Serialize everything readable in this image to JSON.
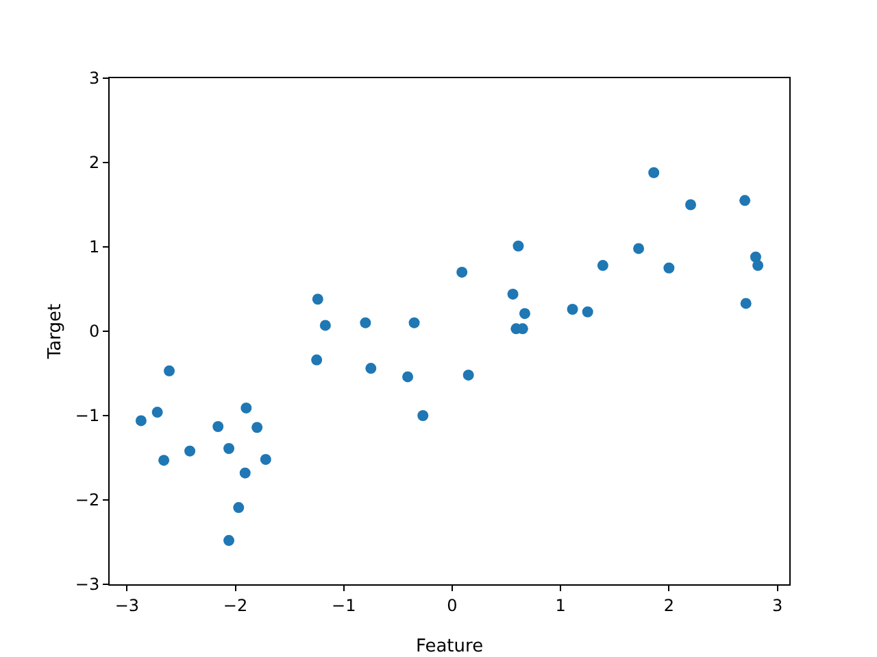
{
  "chart_data": {
    "type": "scatter",
    "xlabel": "Feature",
    "ylabel": "Target",
    "xlim": [
      -3.16,
      3.11
    ],
    "ylim": [
      -3,
      3
    ],
    "xticks": [
      {
        "value": -3,
        "label": "−3"
      },
      {
        "value": -2,
        "label": "−2"
      },
      {
        "value": -1,
        "label": "−1"
      },
      0,
      1,
      2,
      3
    ],
    "yticks": [
      {
        "value": -3,
        "label": "−3"
      },
      {
        "value": -2,
        "label": "−2"
      },
      {
        "value": -1,
        "label": "−1"
      },
      0,
      1,
      2,
      3
    ],
    "grid": false,
    "marker": "circle",
    "series": [
      {
        "color": "#1f77b4",
        "x": [
          -2.87,
          -2.72,
          -2.66,
          -2.61,
          -2.42,
          -2.16,
          -2.06,
          -2.06,
          -1.97,
          -1.9,
          -1.91,
          -1.8,
          -1.72,
          -1.24,
          -1.25,
          -1.18,
          -1.17,
          -0.8,
          -0.75,
          -0.41,
          -0.35,
          -0.27,
          0.09,
          0.15,
          0.56,
          0.61,
          0.59,
          0.65,
          0.67,
          1.11,
          1.25,
          1.39,
          1.72,
          1.86,
          2.0,
          2.2,
          2.7,
          2.71,
          2.8,
          2.82
        ],
        "values": [
          -1.06,
          -0.96,
          -1.53,
          -0.47,
          -1.42,
          -1.13,
          -1.39,
          -2.48,
          -2.09,
          -0.91,
          -1.68,
          -1.14,
          -1.52,
          0.38,
          -0.34,
          null,
          0.07,
          0.1,
          -0.44,
          -0.54,
          0.1,
          -1.0,
          0.7,
          -0.52,
          0.44,
          1.01,
          0.03,
          0.03,
          0.21,
          0.26,
          0.23,
          0.78,
          0.98,
          1.88,
          0.75,
          1.5,
          1.55,
          0.33,
          0.88,
          0.78
        ]
      }
    ]
  }
}
